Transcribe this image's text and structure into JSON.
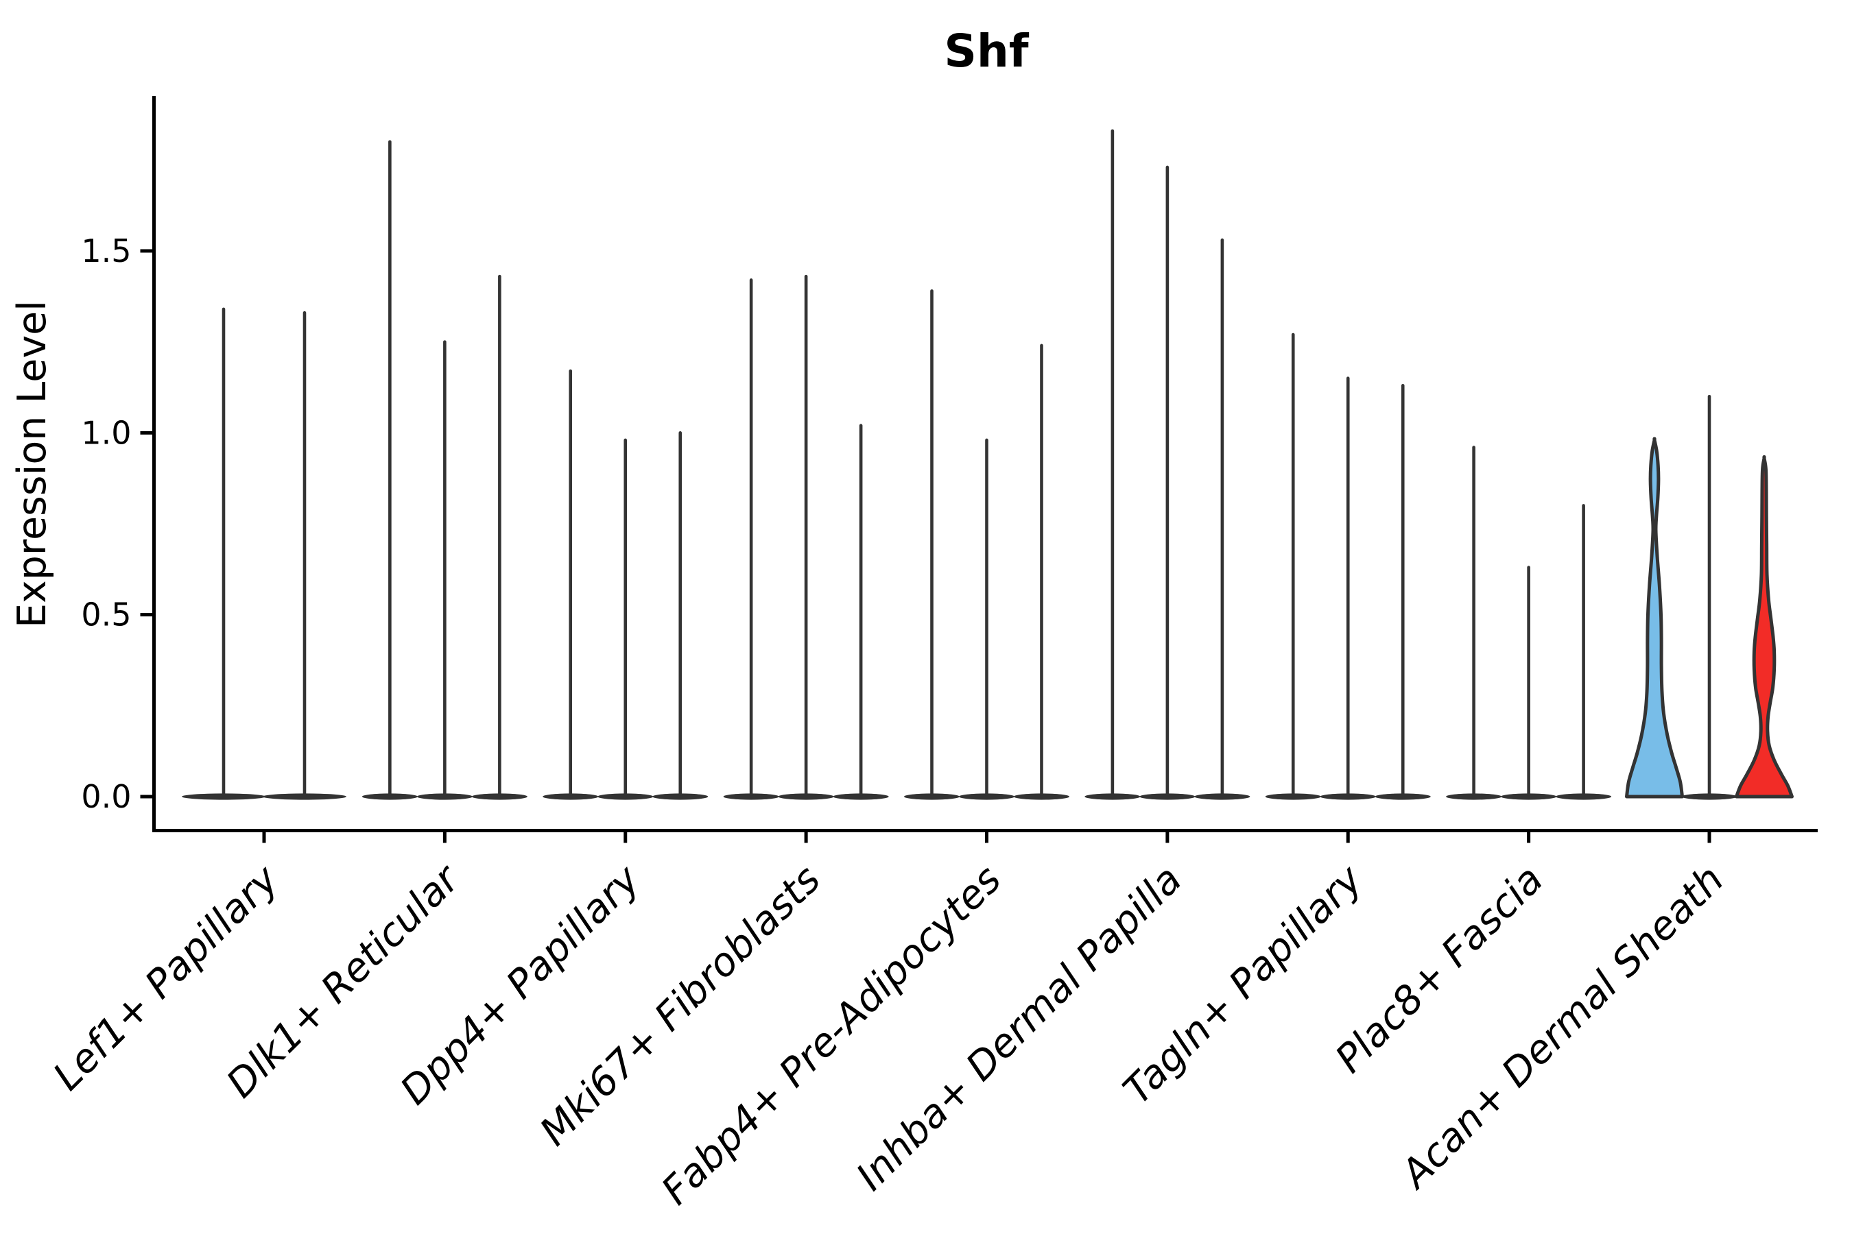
{
  "chart_data": {
    "type": "violin",
    "title": "Shf",
    "xlabel": "",
    "ylabel": "Expression Level",
    "ylim": [
      0,
      1.92
    ],
    "grid": false,
    "legend": "none",
    "yticks": {
      "values": [
        0,
        0.5,
        1.0,
        1.5
      ],
      "labels": [
        "0.0",
        "0.5",
        "1.0",
        "1.5"
      ]
    },
    "categories": [
      "Lef1+ Papillary",
      "Dlk1+ Reticular",
      "Dpp4+ Papillary",
      "Mki67+ Fibroblasts",
      "Fabp4+ Pre-Adipocytes",
      "Inhba+ Dermal Papilla",
      "Tagln+ Papillary",
      "Plac8+ Fascia",
      "Acan+ Dermal Sheath"
    ],
    "groups": [
      {
        "category": "Lef1+ Papillary",
        "violins": [
          {
            "max_expression": 1.34
          },
          {
            "max_expression": 1.33
          }
        ]
      },
      {
        "category": "Dlk1+ Reticular",
        "violins": [
          {
            "max_expression": 1.8
          },
          {
            "max_expression": 1.25
          },
          {
            "max_expression": 1.43
          }
        ]
      },
      {
        "category": "Dpp4+ Papillary",
        "violins": [
          {
            "max_expression": 1.17
          },
          {
            "max_expression": 0.98
          },
          {
            "max_expression": 1.0
          }
        ]
      },
      {
        "category": "Mki67+ Fibroblasts",
        "violins": [
          {
            "max_expression": 1.42
          },
          {
            "max_expression": 1.43
          },
          {
            "max_expression": 1.02
          }
        ]
      },
      {
        "category": "Fabp4+ Pre-Adipocytes",
        "violins": [
          {
            "max_expression": 1.39
          },
          {
            "max_expression": 0.98
          },
          {
            "max_expression": 1.24
          }
        ]
      },
      {
        "category": "Inhba+ Dermal Papilla",
        "violins": [
          {
            "max_expression": 1.83
          },
          {
            "max_expression": 1.73
          },
          {
            "max_expression": 1.53
          }
        ]
      },
      {
        "category": "Tagln+ Papillary",
        "violins": [
          {
            "max_expression": 1.27
          },
          {
            "max_expression": 1.15
          },
          {
            "max_expression": 1.13
          }
        ]
      },
      {
        "category": "Plac8+ Fascia",
        "violins": [
          {
            "max_expression": 0.96
          },
          {
            "max_expression": 0.63
          },
          {
            "max_expression": 0.8
          }
        ]
      },
      {
        "category": "Acan+ Dermal Sheath",
        "violins": [
          {
            "max_expression": 0.98,
            "fill": "#78BDE8",
            "density_profile": [
              [
                0.98,
                0
              ],
              [
                0.95,
                0.08
              ],
              [
                0.91,
                0.13
              ],
              [
                0.87,
                0.145
              ],
              [
                0.82,
                0.12
              ],
              [
                0.77,
                0.07
              ],
              [
                0.73,
                0.05
              ],
              [
                0.66,
                0.1
              ],
              [
                0.58,
                0.18
              ],
              [
                0.5,
                0.235
              ],
              [
                0.43,
                0.25
              ],
              [
                0.36,
                0.25
              ],
              [
                0.29,
                0.27
              ],
              [
                0.23,
                0.33
              ],
              [
                0.17,
                0.46
              ],
              [
                0.12,
                0.62
              ],
              [
                0.08,
                0.78
              ],
              [
                0.04,
                0.93
              ],
              [
                0.0,
                1.0
              ]
            ]
          },
          {
            "max_expression": 1.1
          },
          {
            "max_expression": 0.93,
            "fill": "#F22C27",
            "density_profile": [
              [
                0.93,
                0
              ],
              [
                0.9,
                0.06
              ],
              [
                0.84,
                0.075
              ],
              [
                0.77,
                0.08
              ],
              [
                0.69,
                0.09
              ],
              [
                0.61,
                0.1
              ],
              [
                0.54,
                0.16
              ],
              [
                0.49,
                0.24
              ],
              [
                0.44,
                0.32
              ],
              [
                0.4,
                0.36
              ],
              [
                0.35,
                0.36
              ],
              [
                0.3,
                0.31
              ],
              [
                0.26,
                0.22
              ],
              [
                0.22,
                0.14
              ],
              [
                0.18,
                0.12
              ],
              [
                0.14,
                0.18
              ],
              [
                0.1,
                0.36
              ],
              [
                0.06,
                0.63
              ],
              [
                0.03,
                0.85
              ],
              [
                0.0,
                1.0
              ]
            ]
          }
        ]
      }
    ],
    "colors": {
      "violin_outline": "#333333",
      "axis": "#000000",
      "highlight_blue": "#78BDE8",
      "highlight_red": "#F22C27",
      "background": "#ffffff"
    }
  }
}
